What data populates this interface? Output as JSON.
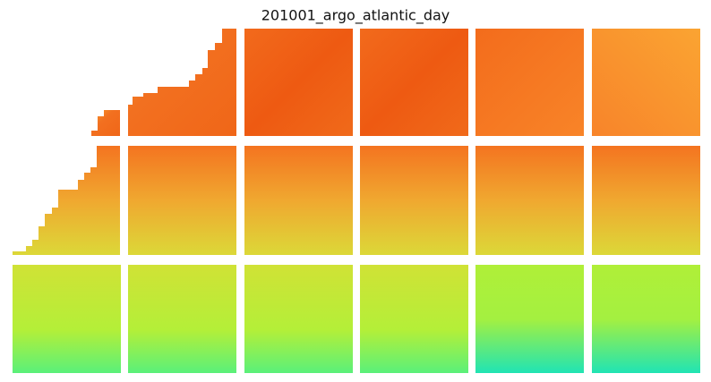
{
  "title": "201001_argo_atlantic_day"
}
